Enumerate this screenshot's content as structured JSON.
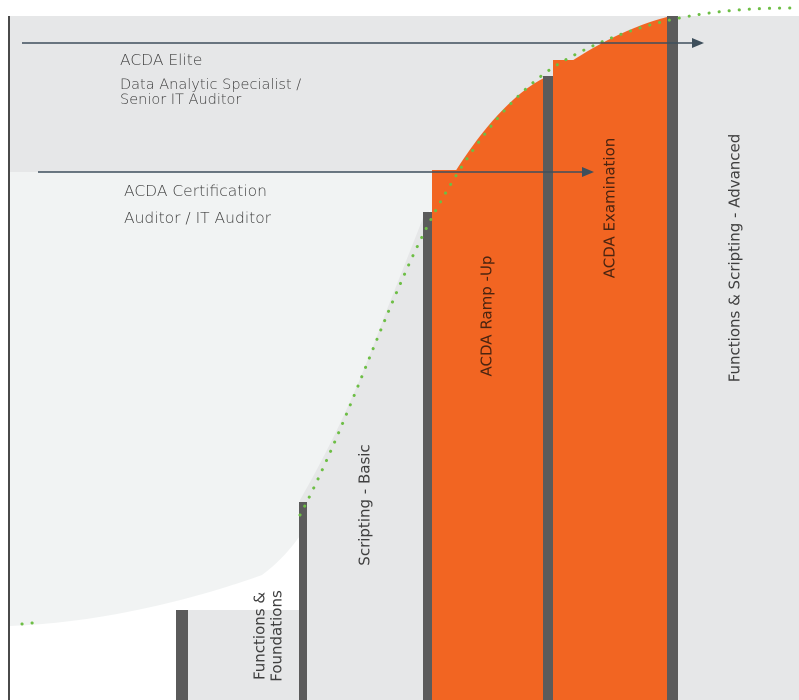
{
  "levels": {
    "elite": {
      "title": "ACDA Elite",
      "subtitle_line1": "Data Analytic Specialist /",
      "subtitle_line2": "Senior IT Auditor"
    },
    "certification": {
      "title": "ACDA Certification",
      "subtitle": "Auditor / IT Auditor"
    }
  },
  "stages": {
    "foundations_line1": "Functions &",
    "foundations_line2": "Foundations",
    "scripting_basic": "Scripting - Basic",
    "ramp_up": "ACDA Ramp -Up",
    "examination": "ACDA Examination",
    "advanced": "Functions & Scripting - Advanced"
  },
  "colors": {
    "orange": "#F26522",
    "band_grey": "#E6E7E8",
    "mid_pale": "#F1F3F3",
    "divider": "#5B5B5B",
    "arrow": "#3E4F5C",
    "curve_dots": "#6DBE45"
  }
}
